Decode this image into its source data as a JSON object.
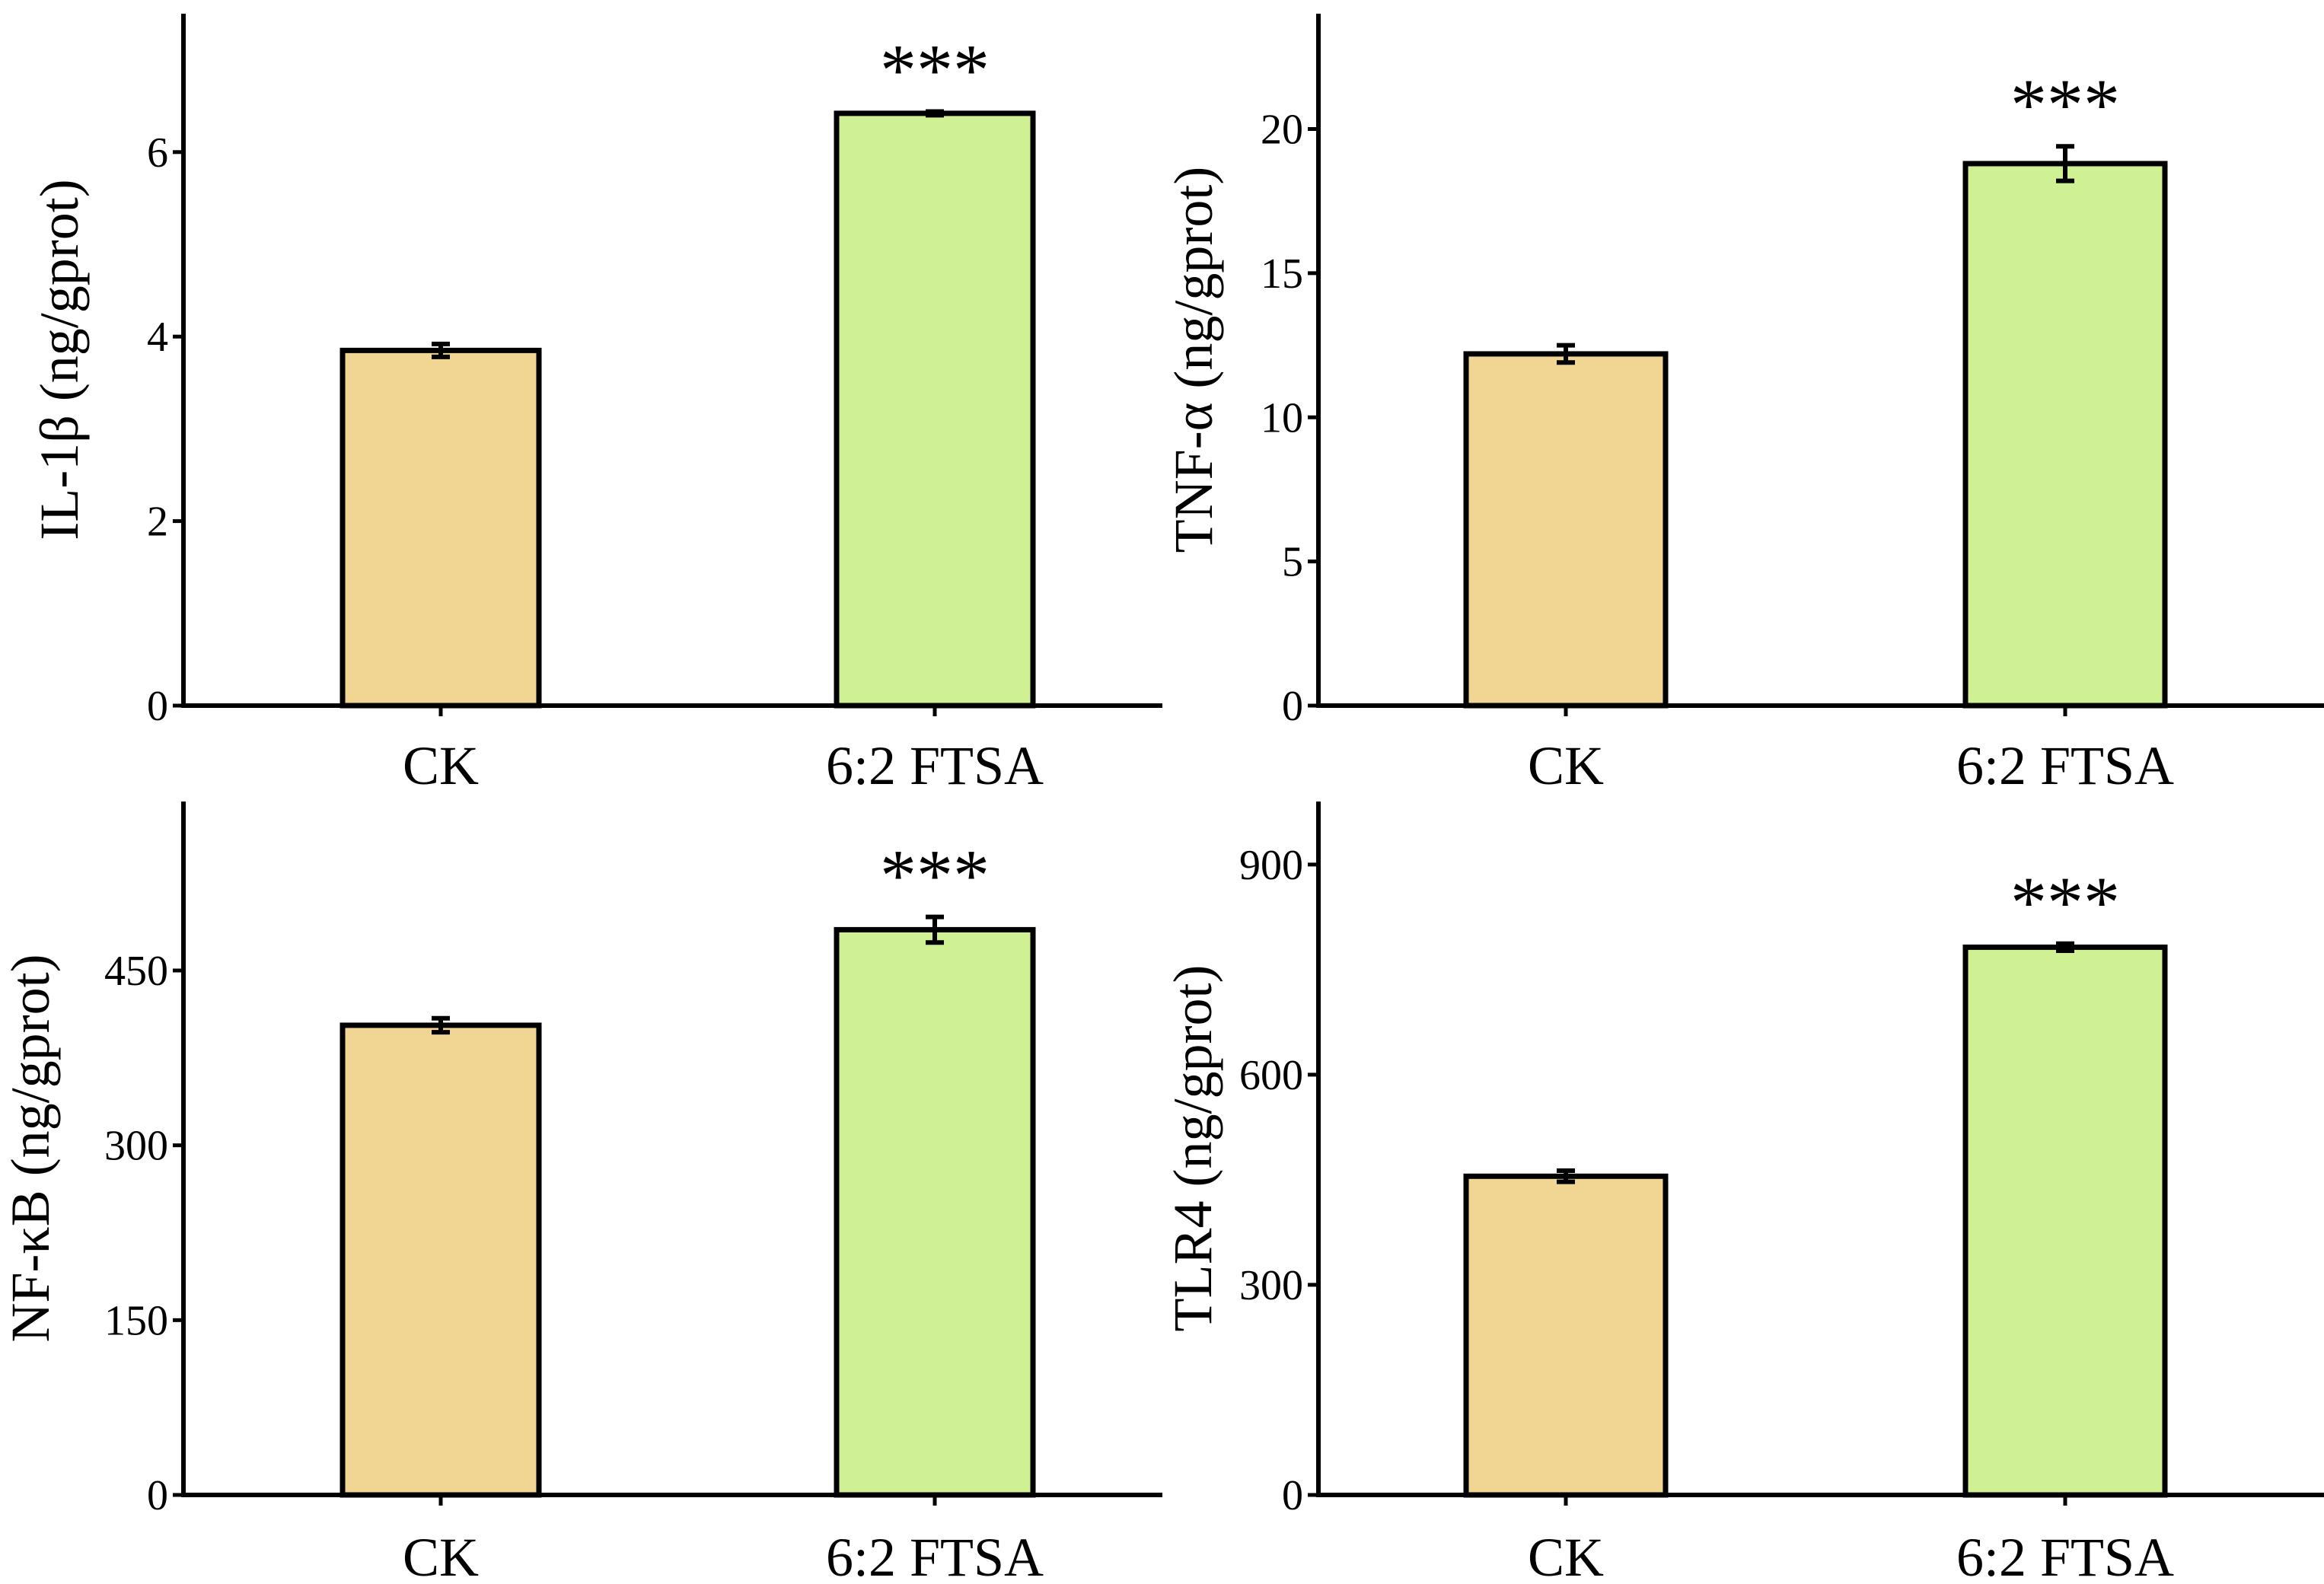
{
  "chart_data": [
    {
      "type": "bar",
      "panel": "top-left",
      "ylabel": "IL-1β (ng/gprot)",
      "categories": [
        "CK",
        "6:2 FTSA"
      ],
      "values": [
        3.85,
        6.42
      ],
      "errors": [
        0.07,
        0.02
      ],
      "significance": [
        "",
        "***"
      ],
      "colors": [
        "#f1d592",
        "#cff193"
      ],
      "ylim": [
        0,
        7.5
      ],
      "yticks": [
        0,
        2,
        4,
        6
      ],
      "ytick_labels": [
        "0",
        "2",
        "4",
        "6"
      ]
    },
    {
      "type": "bar",
      "panel": "top-right",
      "ylabel": "TNF-α (ng/gprot)",
      "categories": [
        "CK",
        "6:2 FTSA"
      ],
      "values": [
        12.2,
        18.8
      ],
      "errors": [
        0.3,
        0.6
      ],
      "significance": [
        "",
        "***"
      ],
      "colors": [
        "#f1d592",
        "#cff193"
      ],
      "ylim": [
        0,
        24
      ],
      "yticks": [
        0,
        5,
        10,
        15,
        20
      ],
      "ytick_labels": [
        "0",
        "5",
        "10",
        "15",
        "20"
      ]
    },
    {
      "type": "bar",
      "panel": "bottom-left",
      "ylabel": "NF-κB (ng/gprot)",
      "categories": [
        "CK",
        "6:2 FTSA"
      ],
      "values": [
        403,
        485
      ],
      "errors": [
        6,
        11
      ],
      "significance": [
        "",
        "***"
      ],
      "colors": [
        "#f1d592",
        "#cff193"
      ],
      "ylim": [
        0,
        595
      ],
      "yticks": [
        0,
        150,
        300,
        450
      ],
      "ytick_labels": [
        "0",
        "150",
        "300",
        "450"
      ]
    },
    {
      "type": "bar",
      "panel": "bottom-right",
      "ylabel": "TLR4 (ng/gprot)",
      "categories": [
        "CK",
        "6:2 FTSA"
      ],
      "values": [
        455,
        782
      ],
      "errors": [
        8,
        5
      ],
      "significance": [
        "",
        "***"
      ],
      "colors": [
        "#f1d592",
        "#cff193"
      ],
      "ylim": [
        0,
        990
      ],
      "yticks": [
        0,
        300,
        600,
        900
      ],
      "ytick_labels": [
        "0",
        "300",
        "600",
        "900"
      ]
    }
  ]
}
